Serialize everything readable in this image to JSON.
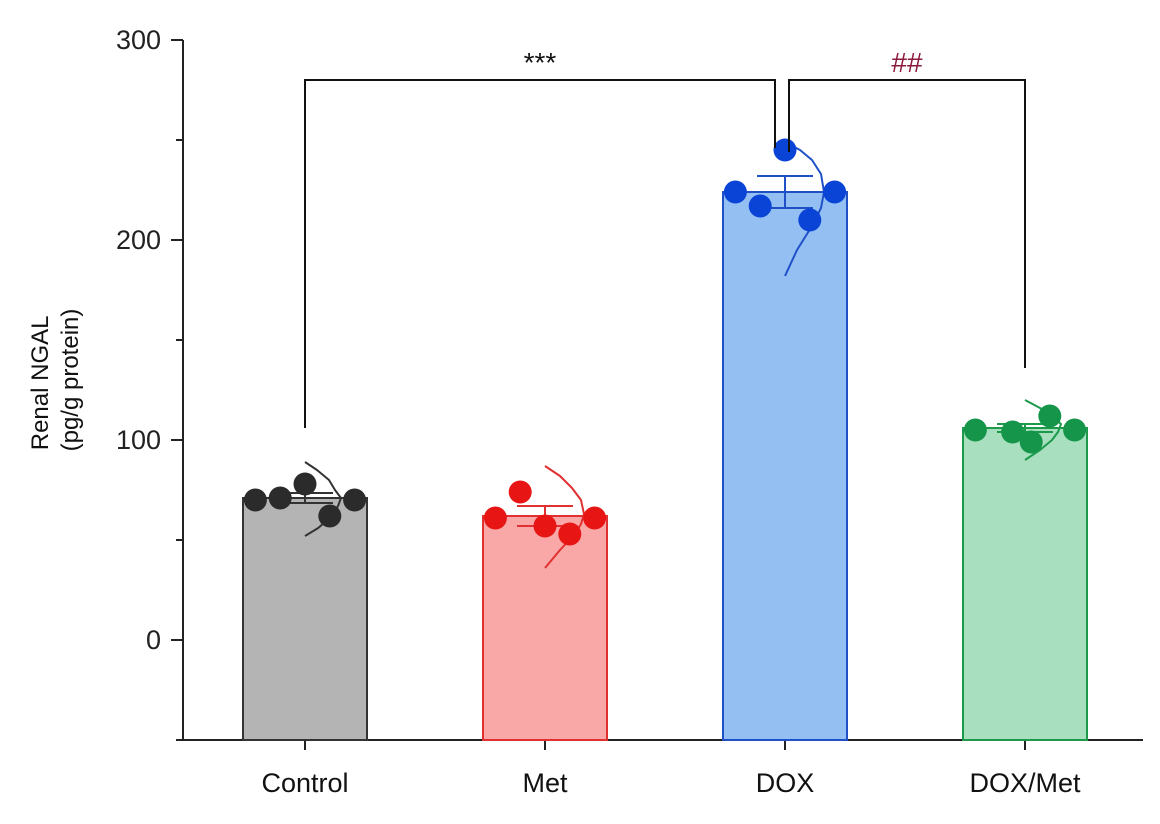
{
  "chart_data": {
    "type": "bar",
    "title": "",
    "xlabel": "",
    "ylabel_line1": "Renal NGAL",
    "ylabel_line2": "(pg/g protein)",
    "ylim": [
      -50,
      300
    ],
    "yticks": [
      0,
      100,
      200,
      300
    ],
    "yticklabels": [
      "0",
      "100",
      "200",
      "300"
    ],
    "categories": [
      "Control",
      "Met",
      "DOX",
      "DOX/Met"
    ],
    "series": [
      {
        "name": "Control",
        "value": 71,
        "error": 2.5,
        "fill": "#b4b4b4",
        "edge": "#333333",
        "point_color": "#2b2b2b",
        "points": [
          {
            "value": 70,
            "jitter": -0.4
          },
          {
            "value": 71,
            "jitter": -0.2
          },
          {
            "value": 78,
            "jitter": 0.0
          },
          {
            "value": 62,
            "jitter": 0.2
          },
          {
            "value": 70,
            "jitter": 0.4
          }
        ],
        "violin": [
          [
            52,
            0.0
          ],
          [
            56,
            0.22
          ],
          [
            62,
            0.45
          ],
          [
            67,
            0.55
          ],
          [
            71,
            0.6
          ],
          [
            75,
            0.5
          ],
          [
            80,
            0.4
          ],
          [
            85,
            0.2
          ],
          [
            89,
            0.0
          ]
        ]
      },
      {
        "name": "Met",
        "value": 62,
        "error": 5,
        "fill": "#f9a7a7",
        "edge": "#e03030",
        "point_color": "#e81515",
        "points": [
          {
            "value": 61,
            "jitter": -0.4
          },
          {
            "value": 74,
            "jitter": -0.2
          },
          {
            "value": 57,
            "jitter": 0.0
          },
          {
            "value": 53,
            "jitter": 0.2
          },
          {
            "value": 61,
            "jitter": 0.4
          }
        ],
        "violin": [
          [
            36,
            0.0
          ],
          [
            45,
            0.25
          ],
          [
            53,
            0.5
          ],
          [
            58,
            0.6
          ],
          [
            63,
            0.65
          ],
          [
            70,
            0.6
          ],
          [
            76,
            0.45
          ],
          [
            82,
            0.25
          ],
          [
            87,
            0.0
          ]
        ]
      },
      {
        "name": "DOX",
        "value": 224,
        "error": 8,
        "fill": "#94bff3",
        "edge": "#1f50c8",
        "point_color": "#0a44d6",
        "points": [
          {
            "value": 224,
            "jitter": -0.4
          },
          {
            "value": 217,
            "jitter": -0.2
          },
          {
            "value": 245,
            "jitter": 0.0
          },
          {
            "value": 210,
            "jitter": 0.2
          },
          {
            "value": 224,
            "jitter": 0.4
          }
        ],
        "violin": [
          [
            182,
            0.0
          ],
          [
            195,
            0.2
          ],
          [
            207,
            0.45
          ],
          [
            216,
            0.6
          ],
          [
            224,
            0.65
          ],
          [
            233,
            0.6
          ],
          [
            240,
            0.45
          ],
          [
            245,
            0.25
          ],
          [
            249,
            0.0
          ]
        ]
      },
      {
        "name": "DOX/Met",
        "value": 106,
        "error": 2,
        "fill": "#a8e0bf",
        "edge": "#1c9a4a",
        "point_color": "#15954a",
        "points": [
          {
            "value": 105,
            "jitter": -0.4
          },
          {
            "value": 104,
            "jitter": -0.1
          },
          {
            "value": 99,
            "jitter": 0.05
          },
          {
            "value": 112,
            "jitter": 0.2
          },
          {
            "value": 105,
            "jitter": 0.4
          }
        ],
        "violin": [
          [
            90,
            0.0
          ],
          [
            95,
            0.25
          ],
          [
            100,
            0.45
          ],
          [
            104,
            0.55
          ],
          [
            108,
            0.6
          ],
          [
            112,
            0.45
          ],
          [
            116,
            0.25
          ],
          [
            120,
            0.0
          ]
        ]
      }
    ],
    "significance": [
      {
        "from": "Control",
        "to": "DOX",
        "label": "***",
        "color": "#111111",
        "bracket_y": 280
      },
      {
        "from": "DOX",
        "to": "DOX/Met",
        "label": "##",
        "color": "#8b1a3c",
        "bracket_y": 280
      }
    ]
  }
}
